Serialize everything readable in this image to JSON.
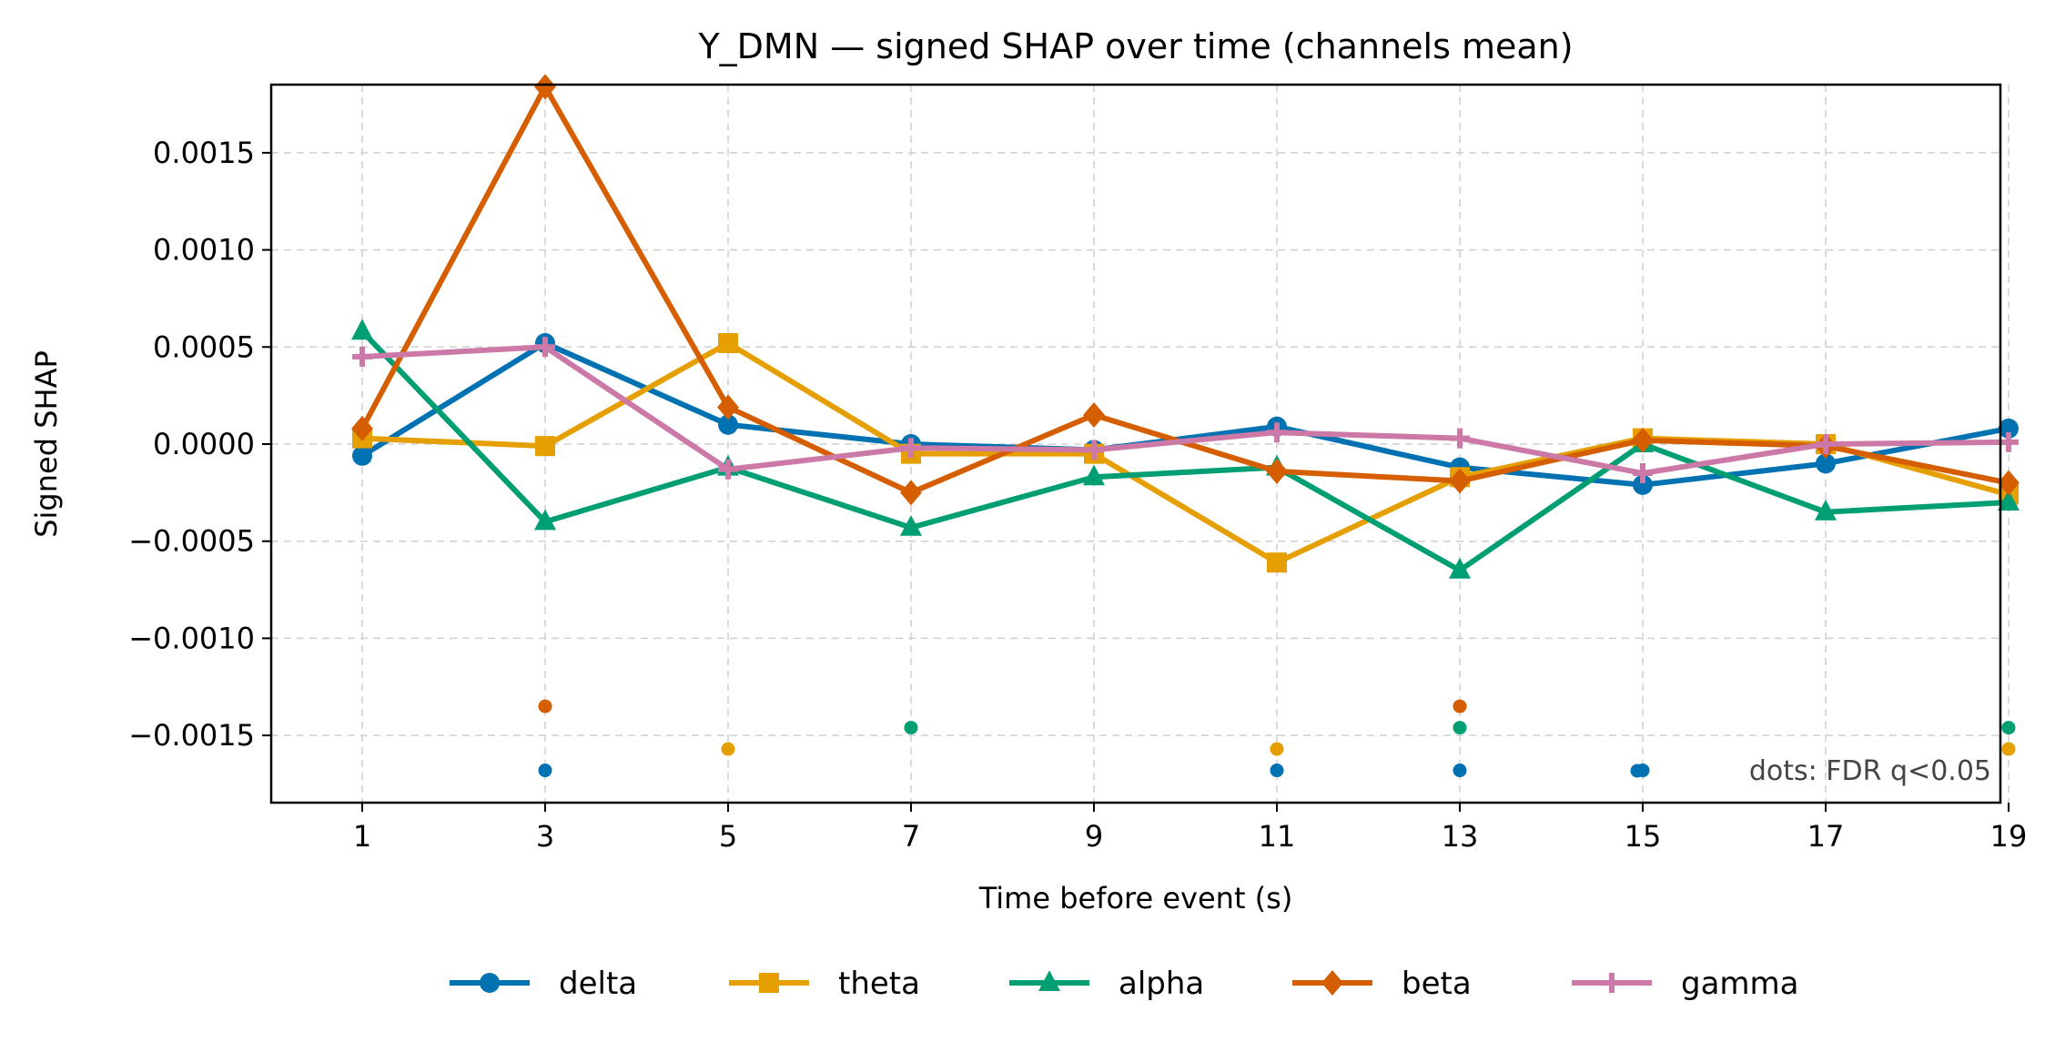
{
  "chart_data": {
    "type": "line",
    "title": "Y_DMN — signed SHAP over time (channels mean)",
    "xlabel": "Time before event (s)",
    "ylabel": "Signed SHAP",
    "x": [
      1,
      3,
      5,
      7,
      9,
      11,
      13,
      15,
      17,
      19
    ],
    "xticks": [
      1,
      3,
      5,
      7,
      9,
      11,
      13,
      15,
      17,
      19
    ],
    "yticks": [
      -0.0015,
      -0.001,
      -0.0005,
      0.0,
      0.0005,
      0.001,
      0.0015
    ],
    "ytick_labels": [
      "−0.0015",
      "−0.0010",
      "−0.0005",
      "0.0000",
      "0.0005",
      "0.0010",
      "0.0015"
    ],
    "xlim": [
      0,
      19
    ],
    "ylim": [
      -0.00185,
      0.00185
    ],
    "grid": true,
    "legend_position": "bottom-center",
    "series": [
      {
        "name": "delta",
        "color": "#0072b2",
        "marker": "circle",
        "values": [
          -6e-05,
          0.00052,
          0.0001,
          0.0,
          -3e-05,
          9e-05,
          -0.00012,
          -0.00021,
          -0.0001,
          8e-05
        ],
        "significant_x": [
          3,
          11,
          13,
          15
        ]
      },
      {
        "name": "theta",
        "color": "#e69f00",
        "marker": "square",
        "values": [
          3e-05,
          -1e-05,
          0.00052,
          -5e-05,
          -5e-05,
          -0.00061,
          -0.00017,
          3e-05,
          0.0,
          -0.00026
        ],
        "significant_x": [
          5,
          11,
          19
        ]
      },
      {
        "name": "alpha",
        "color": "#009e73",
        "marker": "triangle",
        "values": [
          0.00058,
          -0.0004,
          -0.00012,
          -0.00043,
          -0.00017,
          -0.00012,
          -0.00065,
          0.0,
          -0.00035,
          -0.0003
        ],
        "significant_x": [
          7,
          13,
          19
        ]
      },
      {
        "name": "beta",
        "color": "#d55e00",
        "marker": "diamond",
        "values": [
          8e-05,
          0.00184,
          0.00019,
          -0.00025,
          0.00015,
          -0.00014,
          -0.00019,
          2e-05,
          -1e-05,
          -0.0002
        ],
        "significant_x": [
          3,
          13
        ]
      },
      {
        "name": "gamma",
        "color": "#cc79a7",
        "marker": "plus",
        "values": [
          0.00045,
          0.0005,
          -0.00013,
          -2e-05,
          -3e-05,
          6e-05,
          3e-05,
          -0.00015,
          0.0,
          1e-05
        ],
        "significant_x": []
      }
    ],
    "significance_dot_levels": {
      "delta": -0.00168,
      "theta": -0.00157,
      "alpha": -0.00146,
      "beta": -0.00135
    },
    "annotation": "dots: FDR q<0.05"
  }
}
